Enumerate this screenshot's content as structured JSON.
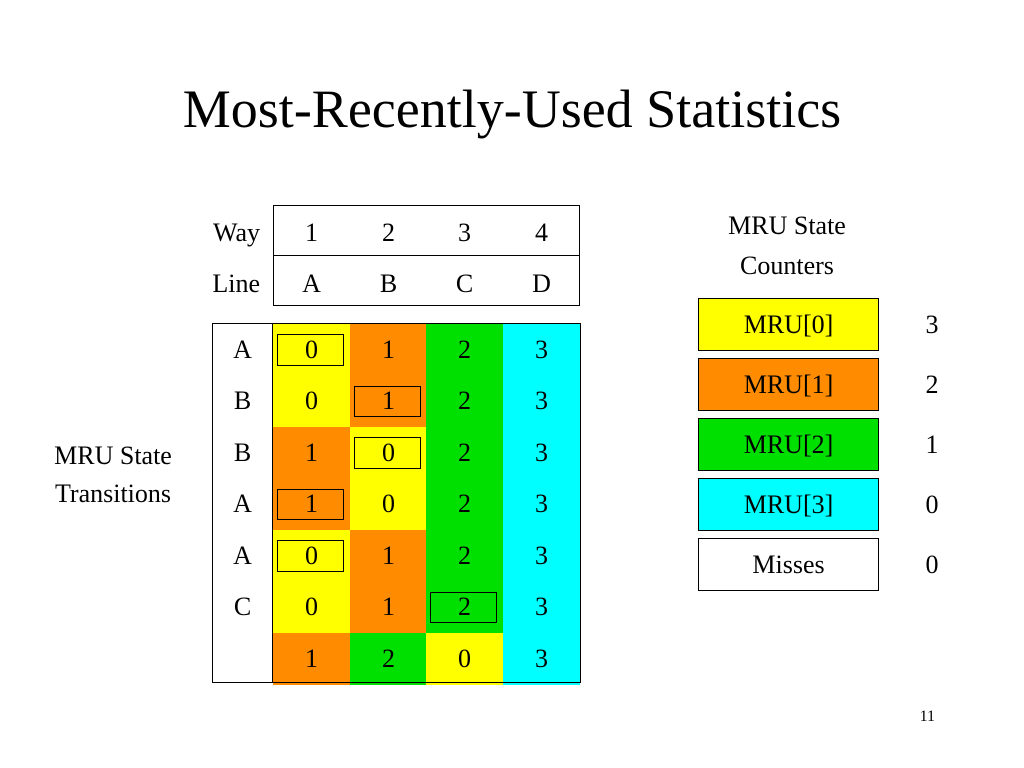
{
  "title": "Most-Recently-Used Statistics",
  "header": {
    "way_label": "Way",
    "line_label": "Line",
    "ways": [
      "1",
      "2",
      "3",
      "4"
    ],
    "lines": [
      "A",
      "B",
      "C",
      "D"
    ]
  },
  "transitions_label": [
    "MRU State",
    "Transitions"
  ],
  "transitions": {
    "colors": {
      "mru0": "#ffff00",
      "mru1": "#ff8c00",
      "mru2": "#00e000",
      "mru3": "#00ffff"
    },
    "rows": [
      {
        "line": "A",
        "values": [
          "0",
          "1",
          "2",
          "3"
        ],
        "highlight": 0
      },
      {
        "line": "B",
        "values": [
          "0",
          "1",
          "2",
          "3"
        ],
        "highlight": 1
      },
      {
        "line": "B",
        "values": [
          "1",
          "0",
          "2",
          "3"
        ],
        "highlight": 1
      },
      {
        "line": "A",
        "values": [
          "1",
          "0",
          "2",
          "3"
        ],
        "highlight": 0
      },
      {
        "line": "A",
        "values": [
          "0",
          "1",
          "2",
          "3"
        ],
        "highlight": 0
      },
      {
        "line": "C",
        "values": [
          "0",
          "1",
          "2",
          "3"
        ],
        "highlight": 2
      },
      {
        "line": "",
        "values": [
          "1",
          "2",
          "0",
          "3"
        ],
        "highlight": null
      }
    ]
  },
  "counters": {
    "title": [
      "MRU State",
      "Counters"
    ],
    "items": [
      {
        "label": "MRU[0]",
        "value": "3",
        "color": "#ffff00"
      },
      {
        "label": "MRU[1]",
        "value": "2",
        "color": "#ff8c00"
      },
      {
        "label": "MRU[2]",
        "value": "1",
        "color": "#00e000"
      },
      {
        "label": "MRU[3]",
        "value": "0",
        "color": "#00ffff"
      },
      {
        "label": "Misses",
        "value": "0",
        "color": "#ffffff"
      }
    ]
  },
  "page_number": "11"
}
